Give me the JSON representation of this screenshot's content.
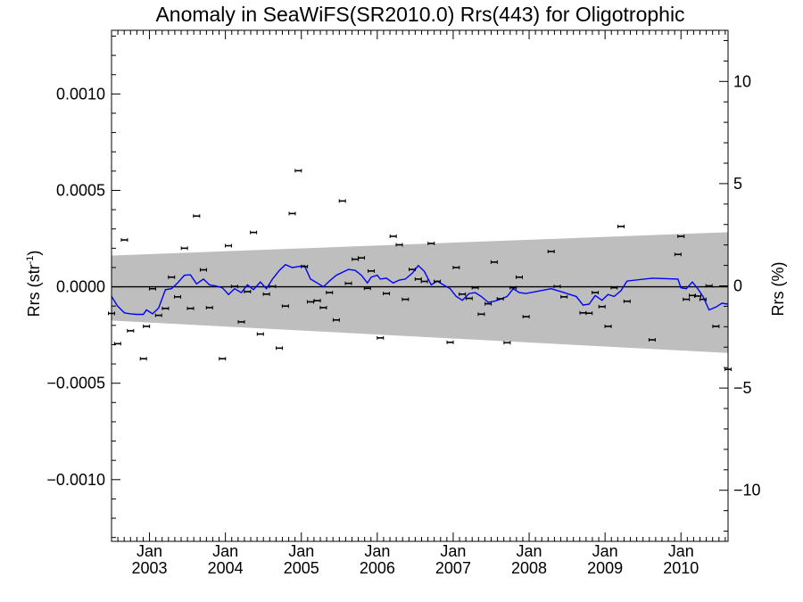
{
  "chart_data": {
    "type": "scatter",
    "title": "Anomaly in SeaWiFS(SR2010.0) Rrs(443) for Oligotrophic",
    "ylabel_left": "Rrs (str",
    "ylabel_left_sup": "-1",
    "ylabel_left_close": ")",
    "ylabel_right": "Rrs (%)",
    "xlim": [
      2002.5,
      2010.62
    ],
    "ylim_left": [
      -0.00132,
      0.00133
    ],
    "ylim_right": [
      -12.5,
      12.5
    ],
    "x_ticks": [
      {
        "x": 2003.0,
        "month": "Jan",
        "year": "2003"
      },
      {
        "x": 2004.0,
        "month": "Jan",
        "year": "2004"
      },
      {
        "x": 2005.0,
        "month": "Jan",
        "year": "2005"
      },
      {
        "x": 2006.0,
        "month": "Jan",
        "year": "2006"
      },
      {
        "x": 2007.0,
        "month": "Jan",
        "year": "2007"
      },
      {
        "x": 2008.0,
        "month": "Jan",
        "year": "2008"
      },
      {
        "x": 2009.0,
        "month": "Jan",
        "year": "2009"
      },
      {
        "x": 2010.0,
        "month": "Jan",
        "year": "2010"
      }
    ],
    "y_ticks_left": [
      {
        "value": 0.001,
        "label": "0.0010"
      },
      {
        "value": 0.0005,
        "label": "0.0005"
      },
      {
        "value": 0.0,
        "label": "0.0000"
      },
      {
        "value": -0.0005,
        "label": "−0.0005"
      },
      {
        "value": -0.001,
        "label": "−0.0010"
      }
    ],
    "y_ticks_right": [
      {
        "value": 10,
        "label": "10"
      },
      {
        "value": 5,
        "label": "5"
      },
      {
        "value": 0,
        "label": "0"
      },
      {
        "value": -5,
        "label": "−5"
      },
      {
        "value": -10,
        "label": "−10"
      }
    ],
    "envelope": {
      "x": [
        2002.5,
        2010.62
      ],
      "upper": [
        0.000162,
        0.000283
      ],
      "lower": [
        -0.000175,
        -0.000343
      ]
    },
    "colors": {
      "envelope": "#bebebe",
      "smooth_line": "#0000ff",
      "points": "#000000",
      "zero_line": "#000000"
    },
    "points": [
      {
        "x": 2002.5,
        "y": -0.000138
      },
      {
        "x": 2002.58,
        "y": -0.000295
      },
      {
        "x": 2002.67,
        "y": 0.000243
      },
      {
        "x": 2002.75,
        "y": -0.000228
      },
      {
        "x": 2002.92,
        "y": -0.000373
      },
      {
        "x": 2002.96,
        "y": -0.000205
      },
      {
        "x": 2003.04,
        "y": -1e-05
      },
      {
        "x": 2003.12,
        "y": -0.000148
      },
      {
        "x": 2003.21,
        "y": -0.000112
      },
      {
        "x": 2003.29,
        "y": 5e-05
      },
      {
        "x": 2003.37,
        "y": -5.2e-05
      },
      {
        "x": 2003.46,
        "y": 0.0002
      },
      {
        "x": 2003.54,
        "y": -0.000112
      },
      {
        "x": 2003.62,
        "y": 0.000367
      },
      {
        "x": 2003.71,
        "y": 8.8e-05
      },
      {
        "x": 2003.79,
        "y": -0.000108
      },
      {
        "x": 2003.96,
        "y": -0.000373
      },
      {
        "x": 2004.04,
        "y": 0.000213
      },
      {
        "x": 2004.12,
        "y": 2e-06
      },
      {
        "x": 2004.21,
        "y": -0.000182
      },
      {
        "x": 2004.29,
        "y": -2.5e-05
      },
      {
        "x": 2004.37,
        "y": 0.000282
      },
      {
        "x": 2004.46,
        "y": -0.000245
      },
      {
        "x": 2004.54,
        "y": -3.8e-05
      },
      {
        "x": 2004.62,
        "y": 2e-06
      },
      {
        "x": 2004.71,
        "y": -0.000318
      },
      {
        "x": 2004.79,
        "y": -0.0001
      },
      {
        "x": 2004.88,
        "y": 0.00038
      },
      {
        "x": 2004.96,
        "y": 0.000602
      },
      {
        "x": 2005.04,
        "y": 0.000105
      },
      {
        "x": 2005.12,
        "y": -7.8e-05
      },
      {
        "x": 2005.21,
        "y": -7.2e-05
      },
      {
        "x": 2005.29,
        "y": -0.000108
      },
      {
        "x": 2005.37,
        "y": -3e-05
      },
      {
        "x": 2005.46,
        "y": -0.000172
      },
      {
        "x": 2005.54,
        "y": 0.000445
      },
      {
        "x": 2005.62,
        "y": 1.8e-05
      },
      {
        "x": 2005.71,
        "y": 0.000143
      },
      {
        "x": 2005.79,
        "y": 0.00015
      },
      {
        "x": 2005.87,
        "y": -8e-06
      },
      {
        "x": 2005.92,
        "y": 8.2e-05
      },
      {
        "x": 2006.04,
        "y": -0.000265
      },
      {
        "x": 2006.12,
        "y": -3.5e-05
      },
      {
        "x": 2006.21,
        "y": 0.000262
      },
      {
        "x": 2006.29,
        "y": 0.000218
      },
      {
        "x": 2006.37,
        "y": -6.5e-05
      },
      {
        "x": 2006.46,
        "y": 9e-05
      },
      {
        "x": 2006.54,
        "y": 4e-05
      },
      {
        "x": 2006.62,
        "y": 2.8e-05
      },
      {
        "x": 2006.71,
        "y": 0.000225
      },
      {
        "x": 2006.79,
        "y": 2.8e-05
      },
      {
        "x": 2006.96,
        "y": -0.000288
      },
      {
        "x": 2007.04,
        "y": 0.0001
      },
      {
        "x": 2007.12,
        "y": -3.8e-05
      },
      {
        "x": 2007.21,
        "y": -6e-05
      },
      {
        "x": 2007.29,
        "y": -5e-06
      },
      {
        "x": 2007.37,
        "y": -0.000142
      },
      {
        "x": 2007.46,
        "y": -8.8e-05
      },
      {
        "x": 2007.54,
        "y": 0.000128
      },
      {
        "x": 2007.62,
        "y": -6.2e-05
      },
      {
        "x": 2007.71,
        "y": -0.00029
      },
      {
        "x": 2007.79,
        "y": -5e-06
      },
      {
        "x": 2007.87,
        "y": 5e-05
      },
      {
        "x": 2007.96,
        "y": -0.000155
      },
      {
        "x": 2008.29,
        "y": 0.000183
      },
      {
        "x": 2008.37,
        "y": 2e-06
      },
      {
        "x": 2008.46,
        "y": -5.2e-05
      },
      {
        "x": 2008.71,
        "y": -0.000135
      },
      {
        "x": 2008.79,
        "y": -0.000137
      },
      {
        "x": 2008.87,
        "y": -3e-05
      },
      {
        "x": 2008.96,
        "y": -0.000103
      },
      {
        "x": 2009.04,
        "y": -0.000205
      },
      {
        "x": 2009.12,
        "y": -5e-06
      },
      {
        "x": 2009.21,
        "y": 0.000313
      },
      {
        "x": 2009.29,
        "y": -7.5e-05
      },
      {
        "x": 2009.62,
        "y": -0.000275
      },
      {
        "x": 2009.96,
        "y": 0.000168
      },
      {
        "x": 2010.0,
        "y": 0.000262
      },
      {
        "x": 2010.07,
        "y": -6.5e-05
      },
      {
        "x": 2010.15,
        "y": -4.5e-05
      },
      {
        "x": 2010.22,
        "y": -4.8e-05
      },
      {
        "x": 2010.29,
        "y": -6.5e-05
      },
      {
        "x": 2010.37,
        "y": 5e-06
      },
      {
        "x": 2010.46,
        "y": -0.000205
      },
      {
        "x": 2010.62,
        "y": -0.000428
      }
    ],
    "smooth_line": {
      "x": [
        2002.5,
        2002.58,
        2002.67,
        2002.75,
        2002.83,
        2002.92,
        2002.96,
        2003.04,
        2003.12,
        2003.21,
        2003.29,
        2003.37,
        2003.46,
        2003.54,
        2003.62,
        2003.71,
        2003.79,
        2003.87,
        2003.96,
        2004.04,
        2004.12,
        2004.21,
        2004.29,
        2004.37,
        2004.46,
        2004.54,
        2004.62,
        2004.71,
        2004.79,
        2004.88,
        2004.96,
        2005.04,
        2005.12,
        2005.21,
        2005.29,
        2005.37,
        2005.46,
        2005.54,
        2005.62,
        2005.71,
        2005.79,
        2005.87,
        2005.92,
        2006.0,
        2006.04,
        2006.12,
        2006.21,
        2006.29,
        2006.37,
        2006.46,
        2006.54,
        2006.62,
        2006.71,
        2006.79,
        2006.87,
        2006.96,
        2007.04,
        2007.12,
        2007.21,
        2007.29,
        2007.37,
        2007.46,
        2007.54,
        2007.62,
        2007.71,
        2007.79,
        2007.87,
        2007.96,
        2008.29,
        2008.46,
        2008.62,
        2008.71,
        2008.79,
        2008.87,
        2008.96,
        2009.04,
        2009.12,
        2009.21,
        2009.29,
        2009.62,
        2009.96,
        2010.0,
        2010.07,
        2010.15,
        2010.22,
        2010.29,
        2010.37,
        2010.46,
        2010.54,
        2010.62
      ],
      "y": [
        -5e-05,
        -0.0001,
        -0.000135,
        -0.00014,
        -0.000143,
        -0.000143,
        -0.00012,
        -0.00014,
        -0.00011,
        -1.5e-05,
        -1e-05,
        2e-05,
        6e-05,
        6.2e-05,
        1.5e-05,
        4e-05,
        1e-05,
        5e-06,
        -5e-06,
        -4e-05,
        -1e-05,
        -3e-05,
        1e-05,
        -1.5e-05,
        2.5e-05,
        -1e-05,
        4e-05,
        8.5e-05,
        0.000115,
        0.0001,
        0.000105,
        0.00011,
        4e-05,
        2e-05,
        0.0,
        3e-05,
        6e-05,
        7.5e-05,
        9e-05,
        8.5e-05,
        6e-05,
        2e-05,
        5e-05,
        6e-05,
        4e-05,
        4.5e-05,
        2e-05,
        3.5e-05,
        4e-05,
        7e-05,
        0.00011,
        8e-05,
        1e-05,
        3e-05,
        1e-05,
        -1e-05,
        -5e-05,
        -7e-05,
        -3.5e-05,
        -3e-05,
        -5e-05,
        -8e-05,
        -7.5e-05,
        -6.5e-05,
        -5e-05,
        -1e-05,
        -3e-05,
        -3.5e-05,
        -1e-05,
        -3e-05,
        -5e-05,
        -9.5e-05,
        -9e-05,
        -4.5e-05,
        -7e-05,
        -4e-05,
        -5e-05,
        -2e-05,
        3e-05,
        4.5e-05,
        4e-05,
        -5e-06,
        -1e-05,
        2.5e-05,
        -1e-05,
        -5e-05,
        -0.00012,
        -0.000105,
        -8.5e-05,
        -9e-05
      ]
    }
  }
}
